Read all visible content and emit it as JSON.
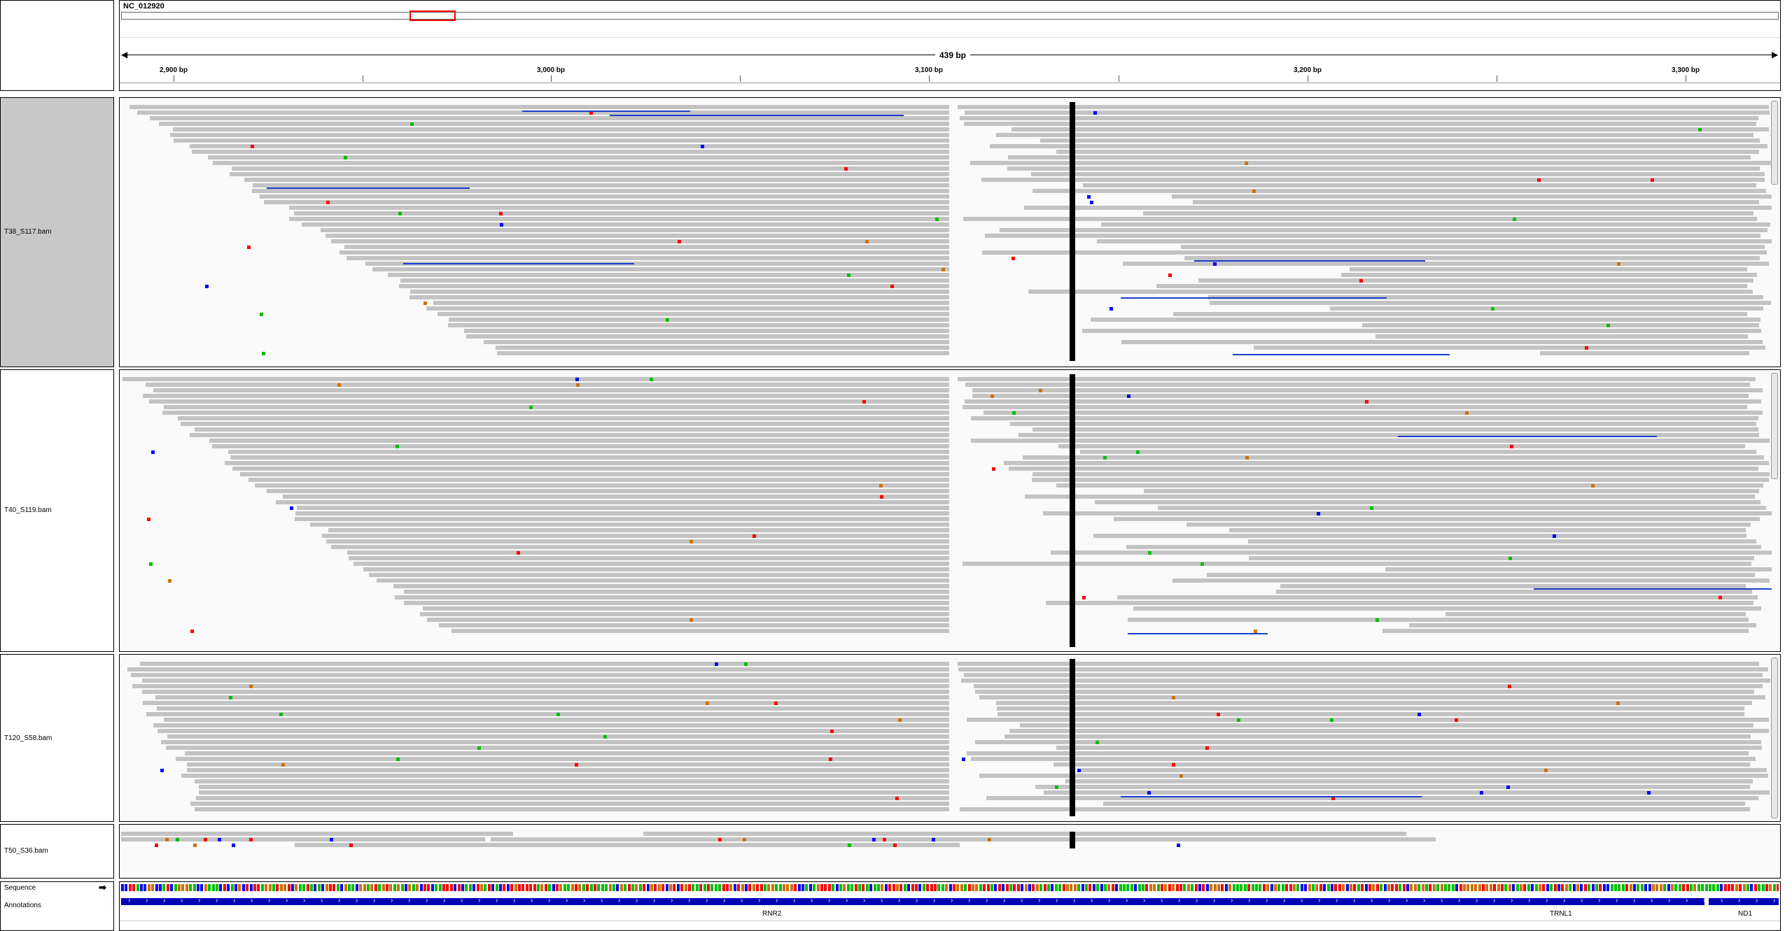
{
  "locus": {
    "chromosome": "NC_012920",
    "span_label": "439 bp"
  },
  "ruler": {
    "ticks": [
      "2,900 bp",
      "3,000 bp",
      "3,100 bp",
      "3,200 bp",
      "3,300 bp"
    ]
  },
  "tracks": [
    {
      "name": "T38_S117.bam",
      "selected": true
    },
    {
      "name": "T40_S119.bam",
      "selected": false
    },
    {
      "name": "T120_S58.bam",
      "selected": false
    },
    {
      "name": "T50_S36.bam",
      "selected": false
    }
  ],
  "lower_panel": {
    "sequence_label": "Sequence",
    "annotations_label": "Annotations",
    "sequence_arrow": "➡"
  },
  "genes": [
    "RNR2",
    "TRNL1",
    "ND1"
  ],
  "colors": {
    "read": "#c3c3c3",
    "deletion": "#1b3fcf",
    "coverage": "#000000",
    "gene": "#0000b4",
    "base_A": "#00c000",
    "base_C": "#0000ff",
    "base_G": "#d17105",
    "base_T": "#ff0000",
    "region_box": "#ff0000"
  }
}
